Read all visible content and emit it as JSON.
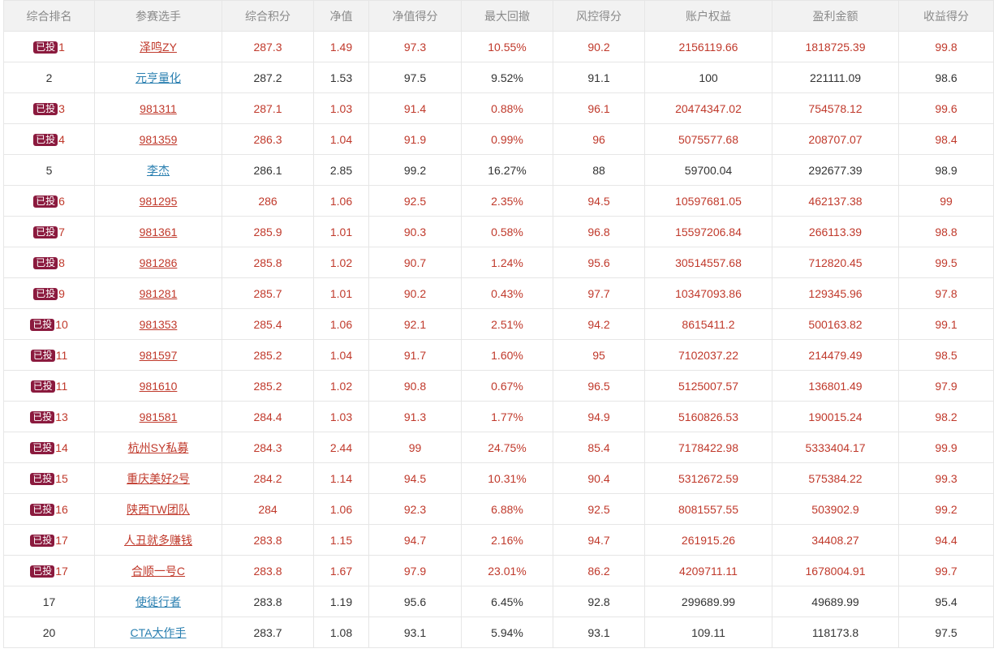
{
  "table": {
    "columns": [
      "综合排名",
      "参赛选手",
      "综合积分",
      "净值",
      "净值得分",
      "最大回撤",
      "风控得分",
      "账户权益",
      "盈利金额",
      "收益得分"
    ],
    "badge_label": "已投",
    "rows": [
      {
        "invested": true,
        "rank": "1",
        "name": "泽鸣ZY",
        "score": "287.3",
        "nav": "1.49",
        "nav_score": "97.3",
        "max_dd": "10.55%",
        "risk_score": "90.2",
        "equity": "2156119.66",
        "profit": "1818725.39",
        "return_score": "99.8"
      },
      {
        "invested": false,
        "rank": "2",
        "name": "元亨量化",
        "score": "287.2",
        "nav": "1.53",
        "nav_score": "97.5",
        "max_dd": "9.52%",
        "risk_score": "91.1",
        "equity": "100",
        "profit": "221111.09",
        "return_score": "98.6"
      },
      {
        "invested": true,
        "rank": "3",
        "name": "981311",
        "score": "287.1",
        "nav": "1.03",
        "nav_score": "91.4",
        "max_dd": "0.88%",
        "risk_score": "96.1",
        "equity": "20474347.02",
        "profit": "754578.12",
        "return_score": "99.6"
      },
      {
        "invested": true,
        "rank": "4",
        "name": "981359",
        "score": "286.3",
        "nav": "1.04",
        "nav_score": "91.9",
        "max_dd": "0.99%",
        "risk_score": "96",
        "equity": "5075577.68",
        "profit": "208707.07",
        "return_score": "98.4"
      },
      {
        "invested": false,
        "rank": "5",
        "name": "李杰",
        "score": "286.1",
        "nav": "2.85",
        "nav_score": "99.2",
        "max_dd": "16.27%",
        "risk_score": "88",
        "equity": "59700.04",
        "profit": "292677.39",
        "return_score": "98.9"
      },
      {
        "invested": true,
        "rank": "6",
        "name": "981295",
        "score": "286",
        "nav": "1.06",
        "nav_score": "92.5",
        "max_dd": "2.35%",
        "risk_score": "94.5",
        "equity": "10597681.05",
        "profit": "462137.38",
        "return_score": "99"
      },
      {
        "invested": true,
        "rank": "7",
        "name": "981361",
        "score": "285.9",
        "nav": "1.01",
        "nav_score": "90.3",
        "max_dd": "0.58%",
        "risk_score": "96.8",
        "equity": "15597206.84",
        "profit": "266113.39",
        "return_score": "98.8"
      },
      {
        "invested": true,
        "rank": "8",
        "name": "981286",
        "score": "285.8",
        "nav": "1.02",
        "nav_score": "90.7",
        "max_dd": "1.24%",
        "risk_score": "95.6",
        "equity": "30514557.68",
        "profit": "712820.45",
        "return_score": "99.5"
      },
      {
        "invested": true,
        "rank": "9",
        "name": "981281",
        "score": "285.7",
        "nav": "1.01",
        "nav_score": "90.2",
        "max_dd": "0.43%",
        "risk_score": "97.7",
        "equity": "10347093.86",
        "profit": "129345.96",
        "return_score": "97.8"
      },
      {
        "invested": true,
        "rank": "10",
        "name": "981353",
        "score": "285.4",
        "nav": "1.06",
        "nav_score": "92.1",
        "max_dd": "2.51%",
        "risk_score": "94.2",
        "equity": "8615411.2",
        "profit": "500163.82",
        "return_score": "99.1"
      },
      {
        "invested": true,
        "rank": "11",
        "name": "981597",
        "score": "285.2",
        "nav": "1.04",
        "nav_score": "91.7",
        "max_dd": "1.60%",
        "risk_score": "95",
        "equity": "7102037.22",
        "profit": "214479.49",
        "return_score": "98.5"
      },
      {
        "invested": true,
        "rank": "11",
        "name": "981610",
        "score": "285.2",
        "nav": "1.02",
        "nav_score": "90.8",
        "max_dd": "0.67%",
        "risk_score": "96.5",
        "equity": "5125007.57",
        "profit": "136801.49",
        "return_score": "97.9"
      },
      {
        "invested": true,
        "rank": "13",
        "name": "981581",
        "score": "284.4",
        "nav": "1.03",
        "nav_score": "91.3",
        "max_dd": "1.77%",
        "risk_score": "94.9",
        "equity": "5160826.53",
        "profit": "190015.24",
        "return_score": "98.2"
      },
      {
        "invested": true,
        "rank": "14",
        "name": "杭州SY私募",
        "score": "284.3",
        "nav": "2.44",
        "nav_score": "99",
        "max_dd": "24.75%",
        "risk_score": "85.4",
        "equity": "7178422.98",
        "profit": "5333404.17",
        "return_score": "99.9"
      },
      {
        "invested": true,
        "rank": "15",
        "name": "重庆美好2号",
        "score": "284.2",
        "nav": "1.14",
        "nav_score": "94.5",
        "max_dd": "10.31%",
        "risk_score": "90.4",
        "equity": "5312672.59",
        "profit": "575384.22",
        "return_score": "99.3"
      },
      {
        "invested": true,
        "rank": "16",
        "name": "陕西TW团队",
        "score": "284",
        "nav": "1.06",
        "nav_score": "92.3",
        "max_dd": "6.88%",
        "risk_score": "92.5",
        "equity": "8081557.55",
        "profit": "503902.9",
        "return_score": "99.2"
      },
      {
        "invested": true,
        "rank": "17",
        "name": "人丑就多赚钱",
        "score": "283.8",
        "nav": "1.15",
        "nav_score": "94.7",
        "max_dd": "2.16%",
        "risk_score": "94.7",
        "equity": "261915.26",
        "profit": "34408.27",
        "return_score": "94.4"
      },
      {
        "invested": true,
        "rank": "17",
        "name": "合顺一号C",
        "score": "283.8",
        "nav": "1.67",
        "nav_score": "97.9",
        "max_dd": "23.01%",
        "risk_score": "86.2",
        "equity": "4209711.11",
        "profit": "1678004.91",
        "return_score": "99.7"
      },
      {
        "invested": false,
        "rank": "17",
        "name": "使徒行者",
        "score": "283.8",
        "nav": "1.19",
        "nav_score": "95.6",
        "max_dd": "6.45%",
        "risk_score": "92.8",
        "equity": "299689.99",
        "profit": "49689.99",
        "return_score": "95.4"
      },
      {
        "invested": false,
        "rank": "20",
        "name": "CTA大作手",
        "score": "283.7",
        "nav": "1.08",
        "nav_score": "93.1",
        "max_dd": "5.94%",
        "risk_score": "93.1",
        "equity": "109.11",
        "profit": "118173.8",
        "return_score": "97.5"
      }
    ]
  },
  "colors": {
    "invested_text": "#c0392b",
    "plain_text": "#333333",
    "plain_link": "#2a7fb0",
    "badge_bg": "#8b1a3e",
    "header_bg": "#f2f2f2"
  }
}
